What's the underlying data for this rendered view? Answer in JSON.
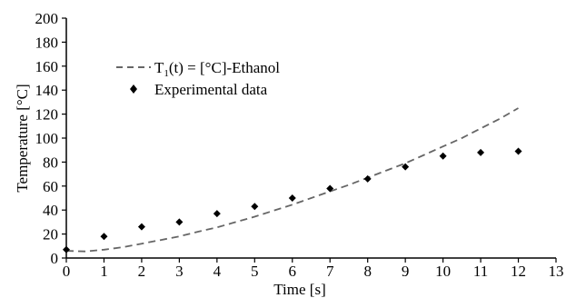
{
  "chart_data": {
    "type": "line",
    "xlabel": "Time [s]",
    "ylabel": "Temperature [°C]",
    "xlim": [
      0,
      13
    ],
    "ylim": [
      0,
      200
    ],
    "xticks": [
      "0",
      "1",
      "2",
      "3",
      "4",
      "5",
      "6",
      "7",
      "8",
      "9",
      "10",
      "11",
      "12",
      "13"
    ],
    "yticks": [
      "0",
      "20",
      "40",
      "60",
      "80",
      "100",
      "120",
      "140",
      "160",
      "180",
      "200"
    ],
    "grid": false,
    "legend_position": "top-left",
    "series": [
      {
        "name_main": "T",
        "name_sub": "1",
        "name_rest": "(t) = [°C]-Ethanol",
        "style": "dashed-line",
        "color": "#666666",
        "x": [
          0,
          0.5,
          1,
          1.5,
          2,
          2.5,
          3,
          3.5,
          4,
          4.5,
          5,
          5.5,
          6,
          6.5,
          7,
          7.5,
          8,
          8.5,
          9,
          9.5,
          10,
          10.5,
          11,
          11.5,
          12
        ],
        "y": [
          6,
          5.5,
          7,
          9,
          12,
          15,
          18,
          22,
          25.5,
          30,
          34.5,
          39.5,
          44.5,
          50,
          55.5,
          61,
          67,
          73,
          79,
          86,
          93,
          100,
          108,
          116,
          125
        ]
      },
      {
        "name": "Experimental data",
        "style": "diamond-markers",
        "color": "#000000",
        "x": [
          0,
          1,
          2,
          3,
          4,
          5,
          6,
          7,
          8,
          9,
          10,
          11,
          12
        ],
        "y": [
          7,
          18,
          26,
          30,
          37,
          43,
          50,
          58,
          66,
          76,
          85,
          88,
          89
        ]
      }
    ]
  }
}
